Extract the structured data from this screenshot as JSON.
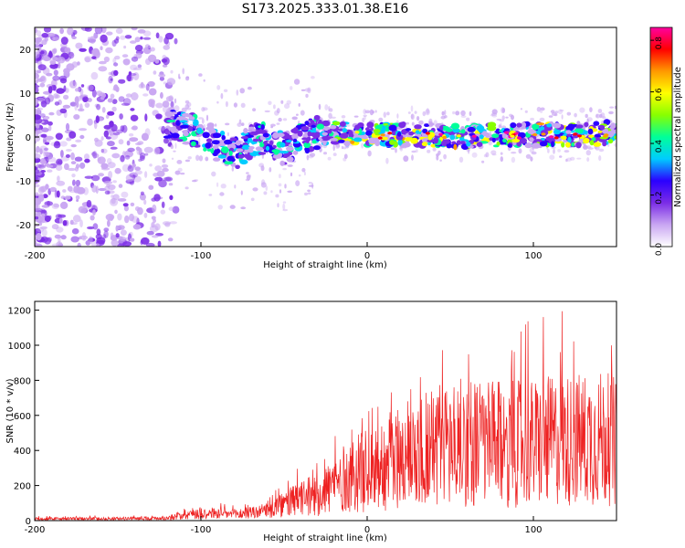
{
  "figure_title": "S173.2025.333.01.38.E16",
  "chart_data": [
    {
      "type": "heatmap",
      "title": "S173.2025.333.01.38.E16",
      "xlabel": "Height of straight line (km)",
      "ylabel": "Frequency (Hz)",
      "xlim": [
        -200,
        150
      ],
      "ylim": [
        -25,
        25
      ],
      "x_ticks": [
        -200,
        -100,
        0,
        100
      ],
      "x_tick_labels": [
        "-200",
        "-100",
        "0",
        "100"
      ],
      "y_ticks": [
        -20,
        -10,
        0,
        10,
        20
      ],
      "y_tick_labels": [
        "-20",
        "-10",
        "0",
        "10",
        "20"
      ],
      "colorbar": {
        "label": "Normalized spectral amplitude",
        "range": [
          0,
          0.85
        ],
        "ticks": [
          0,
          0.2,
          0.4,
          0.6,
          0.8
        ],
        "tick_labels": [
          "0.0",
          "0.2",
          "0.4",
          "0.6",
          "0.8"
        ],
        "colormap": [
          "#ffffff",
          "#c9a6f2",
          "#7b2ce6",
          "#2b00ff",
          "#00ccff",
          "#00ff99",
          "#88ff00",
          "#ffff00",
          "#ff9900",
          "#ff0000",
          "#ff00a0"
        ]
      },
      "ridge_trace": {
        "description": "frequency ridge center (Hz) vs height (km)",
        "x": [
          -120,
          -110,
          -100,
          -90,
          -80,
          -70,
          -60,
          -50,
          -40,
          -30,
          -20,
          0,
          20,
          40,
          60,
          80,
          100,
          120,
          150
        ],
        "y": [
          3,
          2,
          1,
          -2,
          -4,
          -1,
          0,
          -3,
          0,
          1,
          1,
          0.5,
          0.5,
          0.5,
          0,
          0.5,
          0.5,
          0.5,
          1
        ]
      },
      "grid": false
    },
    {
      "type": "line",
      "xlabel": "Height of straight line (km)",
      "ylabel": "SNR (10 * v/v)",
      "xlim": [
        -200,
        150
      ],
      "ylim": [
        0,
        1250
      ],
      "x_ticks": [
        -200,
        -100,
        0,
        100
      ],
      "x_tick_labels": [
        "-200",
        "-100",
        "0",
        "100"
      ],
      "y_ticks": [
        0,
        200,
        400,
        600,
        800,
        1000,
        1200
      ],
      "y_tick_labels": [
        "0",
        "200",
        "400",
        "600",
        "800",
        "1000",
        "1200"
      ],
      "series": [
        {
          "name": "SNR",
          "color": "#ee2222",
          "envelope": {
            "x": [
              -200,
              -150,
              -120,
              -110,
              -100,
              -80,
              -60,
              -50,
              -40,
              -30,
              -20,
              -10,
              0,
              20,
              40,
              60,
              80,
              100,
              120,
              140,
              150
            ],
            "typical": [
              12,
              12,
              15,
              40,
              50,
              40,
              60,
              100,
              140,
              160,
              230,
              280,
              320,
              400,
              480,
              500,
              480,
              490,
              510,
              520,
              500
            ],
            "peak": [
              30,
              30,
              35,
              80,
              120,
              90,
              140,
              230,
              320,
              350,
              500,
              620,
              700,
              880,
              1050,
              1100,
              1000,
              1200,
              1250,
              1050,
              1000
            ]
          }
        }
      ],
      "grid": false
    }
  ]
}
